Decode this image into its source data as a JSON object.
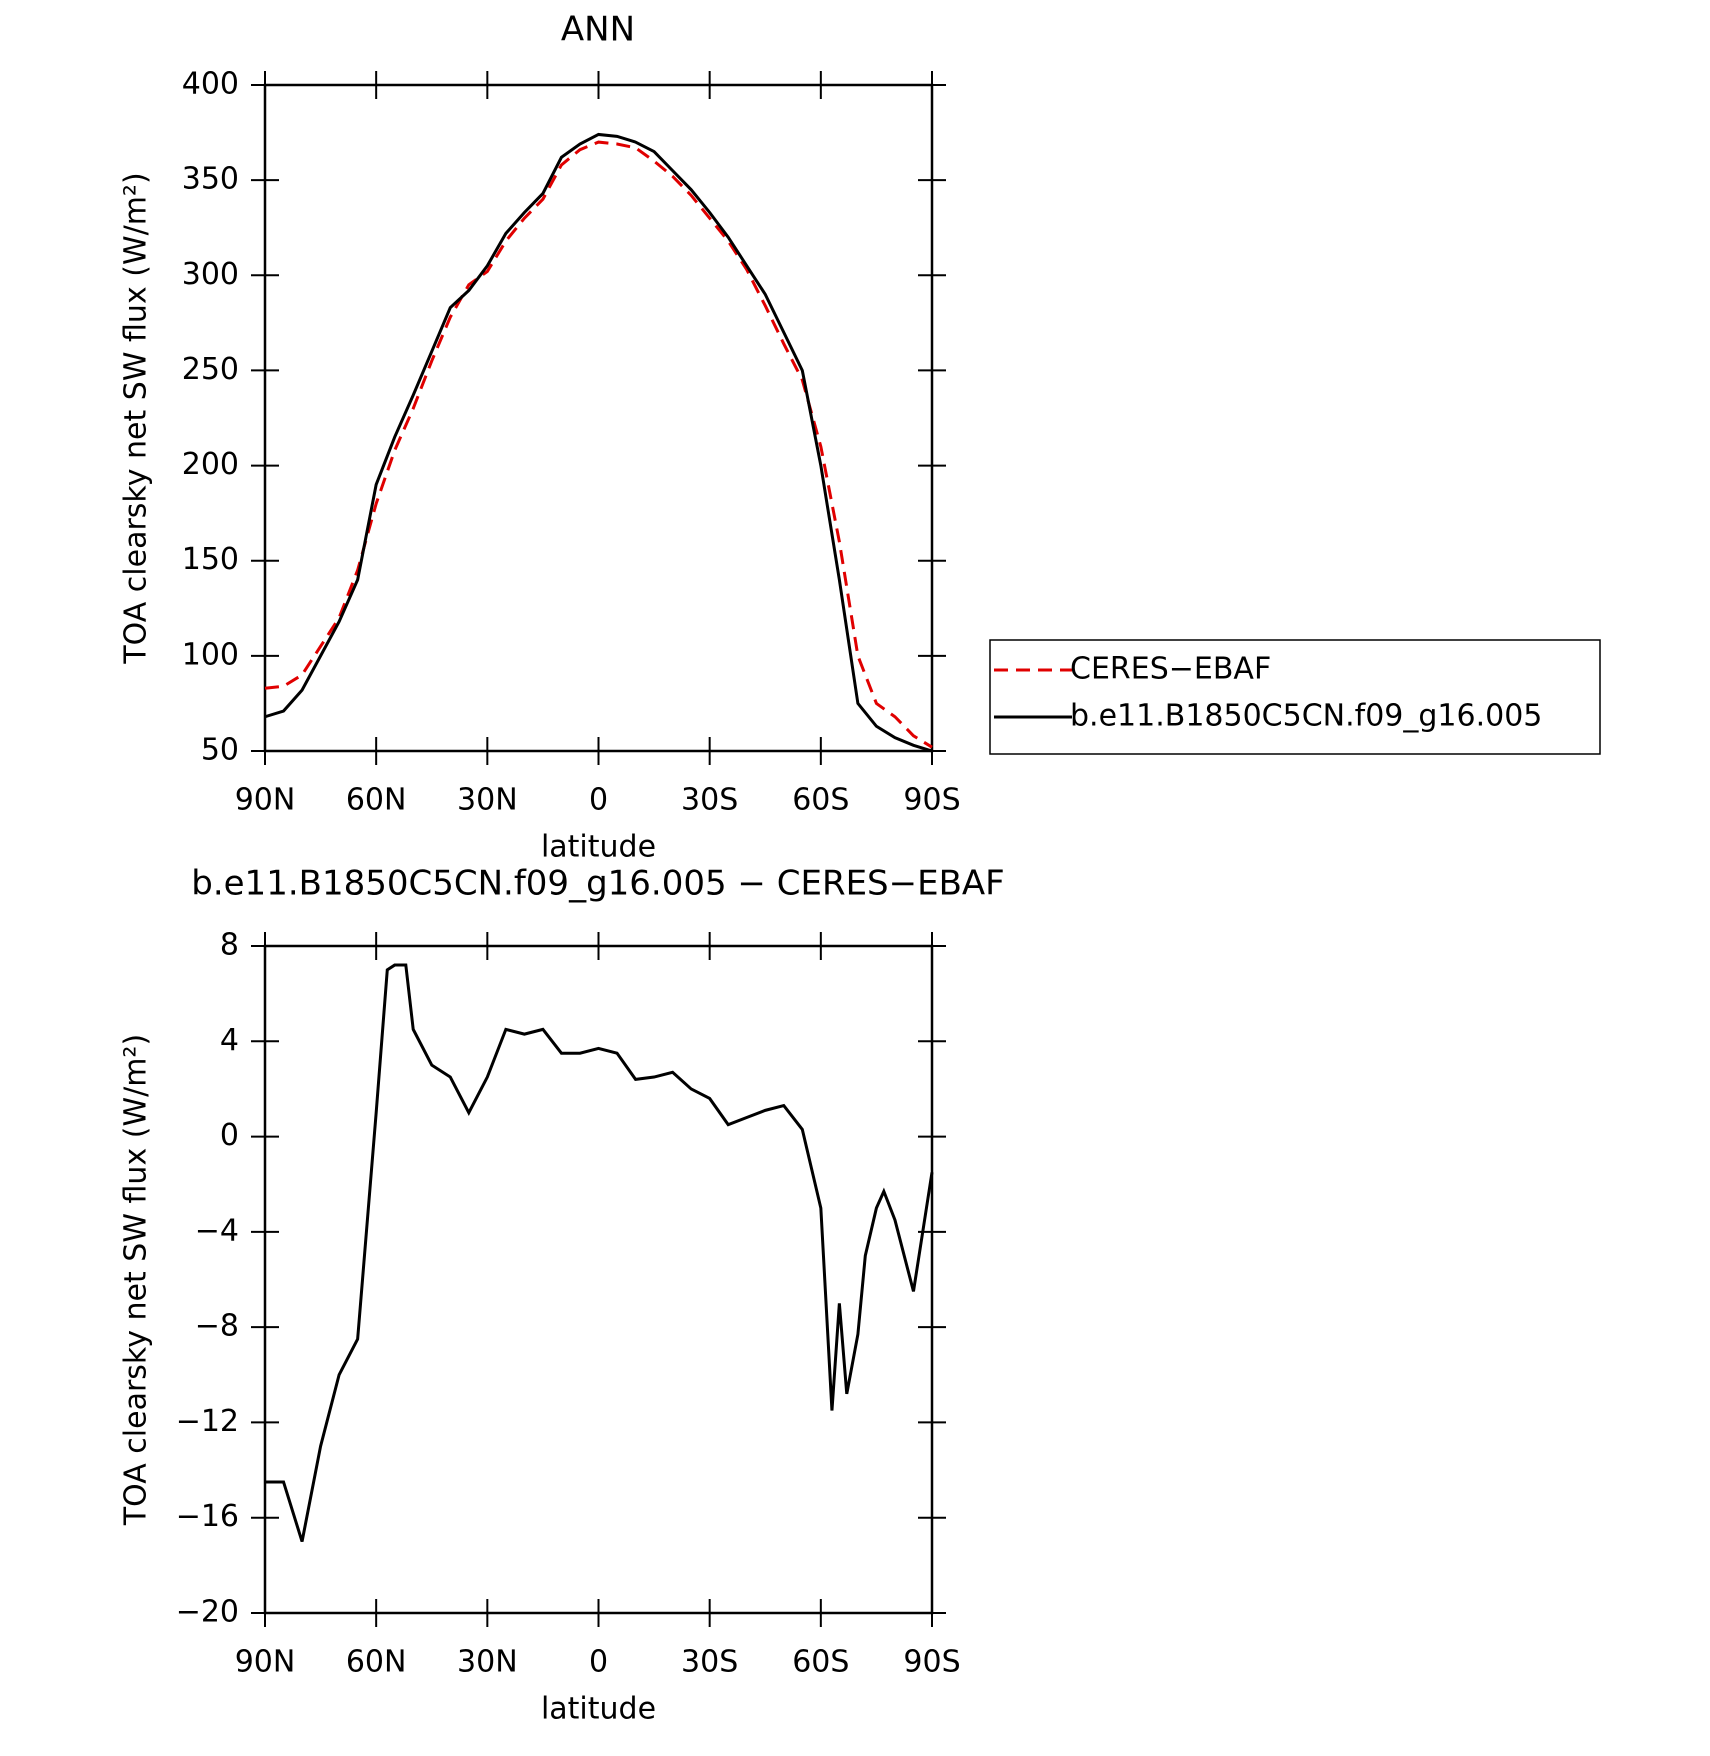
{
  "chart_data": [
    {
      "type": "line",
      "title": "ANN",
      "xlabel": "latitude",
      "ylabel": "TOA clearsky net SW flux (W/m²)",
      "xlim": [
        90,
        -90
      ],
      "xticks": [
        {
          "value": 90,
          "label": "90N"
        },
        {
          "value": 60,
          "label": "60N"
        },
        {
          "value": 30,
          "label": "30N"
        },
        0,
        {
          "value": -30,
          "label": "30S"
        },
        {
          "value": -60,
          "label": "60S"
        },
        {
          "value": -90,
          "label": "90S"
        }
      ],
      "ylim": [
        50,
        400
      ],
      "yticks": [
        50,
        100,
        150,
        200,
        250,
        300,
        350,
        400
      ],
      "legend": "right",
      "x": [
        90,
        85,
        80,
        75,
        70,
        65,
        60,
        55,
        50,
        45,
        40,
        35,
        30,
        25,
        20,
        15,
        10,
        5,
        0,
        -5,
        -10,
        -15,
        -20,
        -25,
        -30,
        -35,
        -40,
        -45,
        -50,
        -55,
        -60,
        -65,
        -70,
        -75,
        -80,
        -85,
        -90
      ],
      "series": [
        {
          "name": "CERES−EBAF",
          "color": "#e00000",
          "dash": true,
          "values": [
            83,
            84,
            90,
            105,
            120,
            145,
            180,
            208,
            230,
            255,
            278,
            295,
            302,
            318,
            330,
            340,
            358,
            366,
            370,
            369,
            367,
            360,
            352,
            342,
            330,
            318,
            303,
            284,
            264,
            245,
            210,
            160,
            100,
            75,
            68,
            58,
            52
          ]
        },
        {
          "name": "b.e11.B1850C5CN.f09_g16.005",
          "color": "#000000",
          "dash": false,
          "values": [
            68,
            71,
            82,
            100,
            118,
            140,
            190,
            215,
            237,
            260,
            283,
            292,
            305,
            322,
            333,
            343,
            362,
            369,
            374,
            373,
            370,
            365,
            355,
            345,
            333,
            320,
            305,
            290,
            270,
            250,
            200,
            140,
            75,
            63,
            57,
            53,
            50
          ]
        }
      ]
    },
    {
      "type": "line",
      "title": "b.e11.B1850C5CN.f09_g16.005 − CERES−EBAF",
      "xlabel": "latitude",
      "ylabel": "TOA clearsky net SW flux (W/m²)",
      "xlim": [
        90,
        -90
      ],
      "xticks": [
        {
          "value": 90,
          "label": "90N"
        },
        {
          "value": 60,
          "label": "60N"
        },
        {
          "value": 30,
          "label": "30N"
        },
        0,
        {
          "value": -30,
          "label": "30S"
        },
        {
          "value": -60,
          "label": "60S"
        },
        {
          "value": -90,
          "label": "90S"
        }
      ],
      "ylim": [
        -20,
        8
      ],
      "yticks": [
        {
          "value": -20,
          "label": "−20"
        },
        {
          "value": -16,
          "label": "−16"
        },
        {
          "value": -12,
          "label": "−12"
        },
        {
          "value": -8,
          "label": "−8"
        },
        {
          "value": -4,
          "label": "−4"
        },
        0,
        4,
        8
      ],
      "x": [
        90,
        85,
        80,
        75,
        70,
        65,
        60,
        57,
        55,
        52,
        50,
        45,
        40,
        35,
        30,
        25,
        20,
        15,
        10,
        5,
        0,
        -5,
        -10,
        -15,
        -20,
        -25,
        -30,
        -35,
        -40,
        -45,
        -50,
        -55,
        -60,
        -63,
        -65,
        -67,
        -70,
        -72,
        -75,
        -77,
        -80,
        -85,
        -90
      ],
      "series": [
        {
          "color": "#000000",
          "dash": false,
          "values": [
            -14.5,
            -14.5,
            -17,
            -13,
            -10,
            -8.5,
            1,
            7,
            7.2,
            7.2,
            4.5,
            3,
            2.5,
            1,
            2.5,
            4.5,
            4.3,
            4.5,
            3.5,
            3.5,
            3.7,
            3.5,
            2.4,
            2.5,
            2.7,
            2,
            1.6,
            0.5,
            0.8,
            1.1,
            1.3,
            0.3,
            -3,
            -11.5,
            -7,
            -10.8,
            -8.3,
            -5,
            -3,
            -2.3,
            -3.5,
            -6.5,
            -1.5
          ]
        }
      ]
    }
  ]
}
